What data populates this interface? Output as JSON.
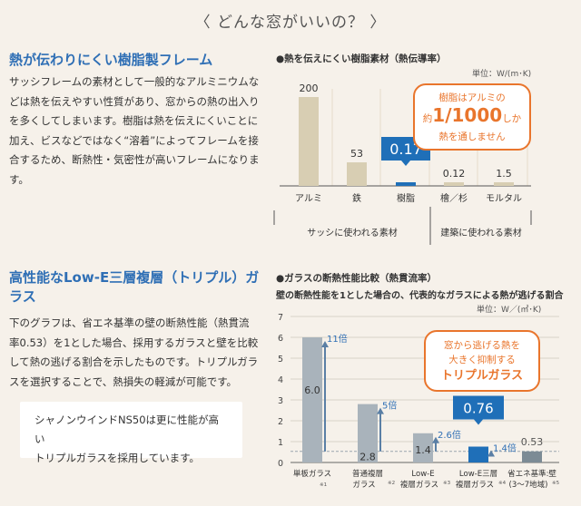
{
  "header": {
    "title": "〈 どんな窓がいいの？ 〉"
  },
  "section1": {
    "title": "熱が伝わりにくい樹脂製フレーム",
    "lines": [
      "サッシフレームの素材として一般的なアルミニウムな",
      "どは熱を伝えやすい性質があり、窓からの熱の出入り",
      "を多くしてしまいます。樹脂は熱を伝えにくいことに",
      "加え、ビスなどではなく“溶着”によってフレームを接",
      "合するため、断熱性・気密性が高いフレームになりま",
      "す。"
    ]
  },
  "section2": {
    "title_line1": "高性能なLow-E三層複層（トリプル）ガ",
    "title_line2": "ラス",
    "lines": [
      "下のグラフは、省エネ基準の壁の断熱性能（熱貫流",
      "率0.53）を1とした場合、採用するガラスと壁を比較",
      "して熱の逃げる割合を示したものです。トリプルガラ",
      "スを選択することで、熱損失の軽減が可能です。"
    ],
    "callout_line1": "シャノンウインドNS50は更に性能が高い",
    "callout_line2": "トリプルガラスを採用しています。"
  },
  "chart1_text": {
    "title": "●熱を伝えにくい樹脂素材（熱伝導率）",
    "unit": "単位：W/(m･K)",
    "bubble_line1": "樹脂はアルミの",
    "bubble_pre": "約",
    "bubble_big": "1/1000",
    "bubble_post": "しか",
    "bubble_line3": "熱を通しません",
    "group1": "サッシに使われる素材",
    "group2": "建築に使われる素材"
  },
  "chart2_text": {
    "title": "●ガラスの断熱性能比較（熱貫流率）",
    "subtitle": "壁の断熱性能を1とした場合の、代表的なガラスによる熱が逃げる割合",
    "unit": "単位：W／(㎡･K)",
    "bubble_line1": "窓から逃げる熱を",
    "bubble_line2": "大きく抑制する",
    "bubble_line3": "トリプルガラス"
  },
  "colors": {
    "accent_blue": "#2f6fb5",
    "orange": "#e9752c",
    "tan_bar": "#d8ceb3",
    "gray_bar": "#a9b3bb",
    "blue_bar": "#1f6fb8",
    "dark_gray_bar": "#7c8b95"
  },
  "chart_data": [
    {
      "type": "bar",
      "title": "●熱を伝えにくい樹脂素材（熱伝導率）",
      "unit": "単位：W/(m･K)",
      "categories": [
        "アルミ",
        "鉄",
        "樹脂",
        "檜／杉",
        "モルタル"
      ],
      "values": [
        200,
        53,
        0.17,
        0.12,
        1.5
      ],
      "value_labels": [
        "200",
        "53",
        "0.17",
        "0.12",
        "1.5"
      ],
      "highlight": "樹脂",
      "groups": [
        {
          "label": "サッシに使われる素材",
          "categories": [
            "アルミ",
            "鉄",
            "樹脂"
          ]
        },
        {
          "label": "建築に使われる素材",
          "categories": [
            "檜／杉",
            "モルタル"
          ]
        }
      ]
    },
    {
      "type": "bar",
      "title": "●ガラスの断熱性能比較（熱貫流率）",
      "subtitle": "壁の断熱性能を1とした場合の、代表的なガラスによる熱が逃げる割合",
      "unit": "単位：W／(㎡･K)",
      "categories": [
        "単板ガラス",
        "普通複層ガラス",
        "Low-E複層ガラス",
        "Low-E三層複層ガラス",
        "省エネ基準:壁(3〜7地域)"
      ],
      "category_lines": [
        [
          "単板ガラス",
          ""
        ],
        [
          "普通複層",
          "ガラス"
        ],
        [
          "Low-E",
          "複層ガラス"
        ],
        [
          "Low-E三層",
          "複層ガラス"
        ],
        [
          "省エネ基準:壁",
          "(3〜7地域)"
        ]
      ],
      "footnotes": [
        "※1",
        "※2",
        "※3",
        "※4",
        "※5"
      ],
      "values": [
        6.0,
        2.8,
        1.4,
        0.76,
        0.53
      ],
      "value_labels": [
        "6.0",
        "2.8",
        "1.4",
        "0.76",
        "0.53"
      ],
      "ratios": [
        "11倍",
        "5倍",
        "2.6倍",
        "1.4倍",
        ""
      ],
      "highlight": "Low-E三層複層ガラス",
      "ylim": [
        0,
        7
      ],
      "yticks": [
        0,
        1,
        2,
        3,
        4,
        5,
        6,
        7
      ],
      "reference_line": 0.53,
      "grid": true
    }
  ]
}
